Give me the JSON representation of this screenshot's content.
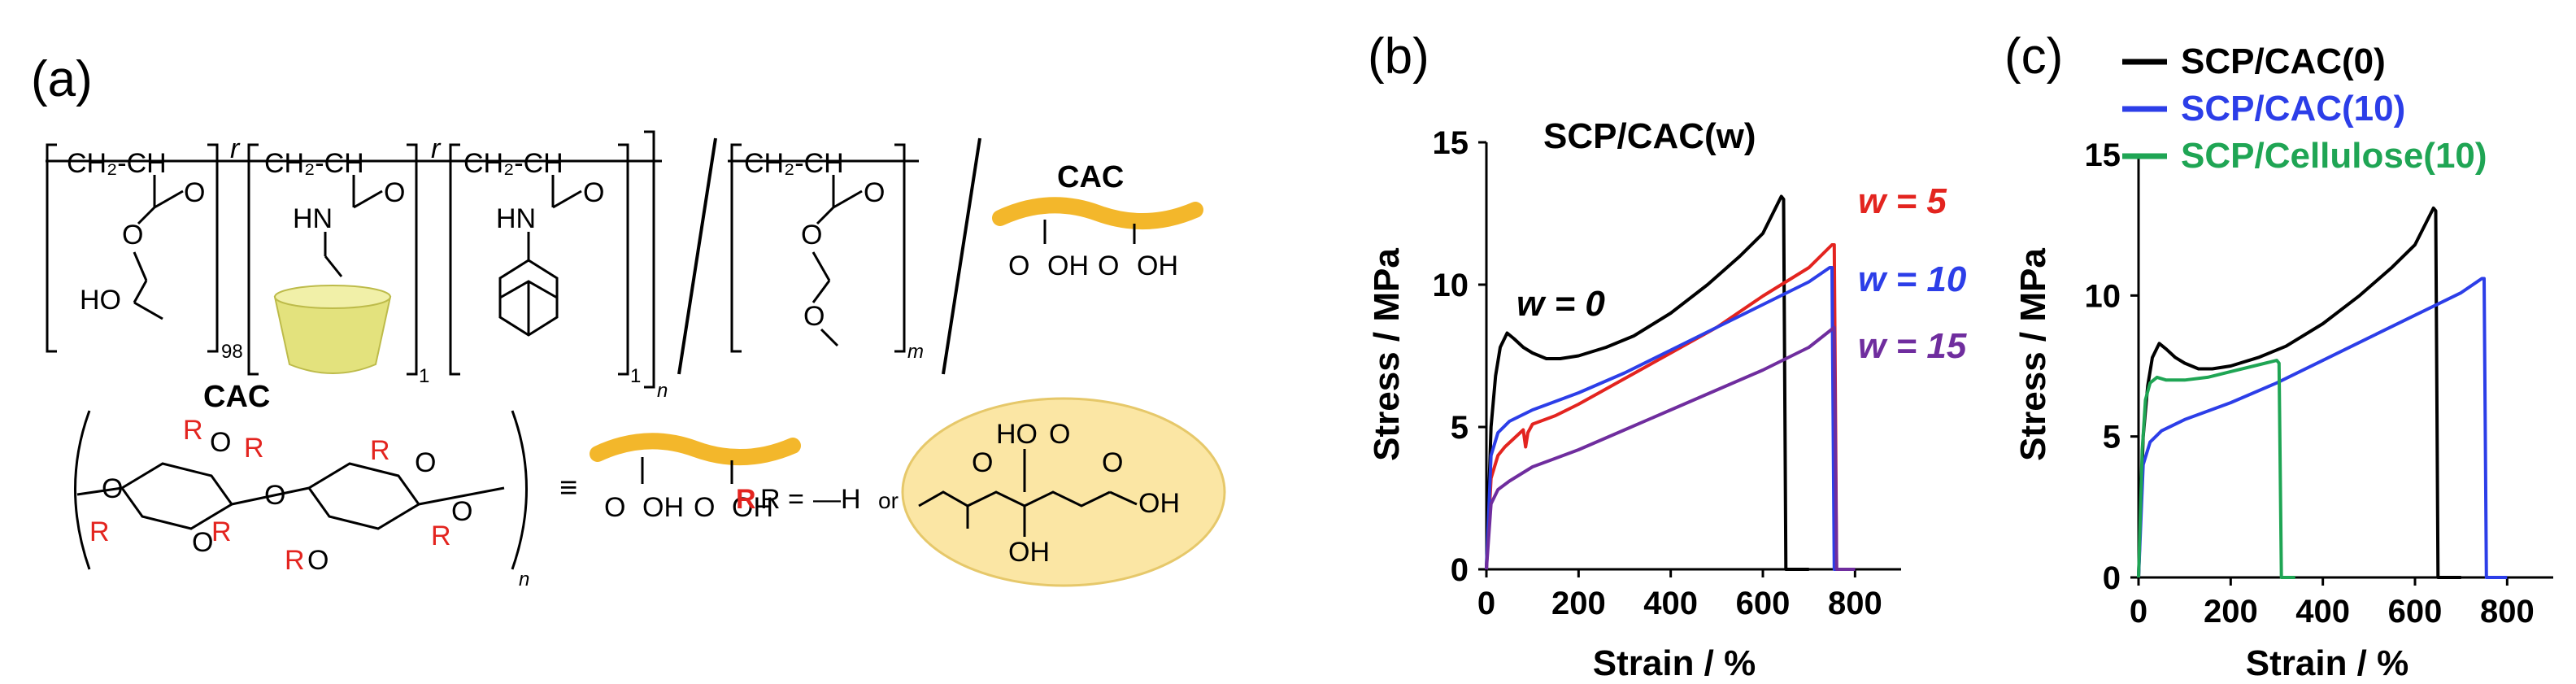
{
  "panels": {
    "a": "(a)",
    "b": "(b)",
    "c": "(c)"
  },
  "scheme": {
    "cac_label_top": "CAC",
    "cac_label_bottom": "CAC",
    "r_label": "R",
    "r_equals": "R =",
    "r_or": "or",
    "h_group": "—H",
    "equiv": "≡",
    "sub_98": "98",
    "sub_1a": "1",
    "sub_1b": "1",
    "sub_n": "n",
    "sub_m": "m",
    "sub_n2": "n",
    "random_r1": "r",
    "random_r2": "r",
    "ch2ch_1": "CH₂-CH",
    "ch2ch_2": "CH₂-CH",
    "ch2ch_3": "CH₂-CH",
    "ch2ch_4": "CH₂-CH",
    "ho": "HO",
    "hn_1": "HN",
    "hn_2": "HN",
    "oh_1": "OH",
    "oh_2": "OH",
    "oh_3": "OH",
    "oh_4": "OH",
    "oh_citric": "OH",
    "ho_citric": "HO",
    "oh_citric2": "OH",
    "o_letters": "O",
    "colors": {
      "cac_chain": "#f3b72b",
      "cyclodextrin": "#e3e27d",
      "citric_bg": "#fbe6a4",
      "red_r": "#e3241f"
    }
  },
  "chart_data": [
    {
      "type": "line",
      "title": "SCP/CAC(w)",
      "xlabel": "Strain / %",
      "ylabel": "Stress / MPa",
      "xlim": [
        0,
        900
      ],
      "ylim": [
        0,
        15
      ],
      "xticks": [
        0,
        200,
        400,
        600,
        800
      ],
      "yticks": [
        0,
        5,
        10,
        15
      ],
      "annotations": [
        {
          "text": "w = 0",
          "color": "#000000"
        },
        {
          "text": "w = 5",
          "color": "#e3241f"
        },
        {
          "text": "w = 10",
          "color": "#2c3ee8"
        },
        {
          "text": "w = 15",
          "color": "#6f2d9e"
        }
      ],
      "series": [
        {
          "color": "#000000",
          "x": [
            0,
            10,
            20,
            30,
            45,
            60,
            80,
            100,
            130,
            160,
            200,
            260,
            320,
            400,
            480,
            550,
            600,
            640,
            645,
            650,
            700
          ],
          "y": [
            0,
            5.0,
            6.8,
            7.8,
            8.3,
            8.1,
            7.8,
            7.6,
            7.4,
            7.4,
            7.5,
            7.8,
            8.2,
            9.0,
            10.0,
            11.0,
            11.8,
            13.1,
            13.0,
            0,
            0
          ]
        },
        {
          "color": "#e3241f",
          "x": [
            0,
            10,
            25,
            40,
            60,
            80,
            85,
            90,
            100,
            150,
            200,
            300,
            400,
            500,
            600,
            700,
            750,
            755,
            760,
            800
          ],
          "y": [
            0,
            3.2,
            4.0,
            4.3,
            4.6,
            4.9,
            4.3,
            4.8,
            5.1,
            5.4,
            5.8,
            6.7,
            7.6,
            8.5,
            9.6,
            10.6,
            11.4,
            11.4,
            0,
            0
          ]
        },
        {
          "color": "#2c3ee8",
          "x": [
            0,
            10,
            25,
            50,
            100,
            200,
            300,
            400,
            500,
            600,
            700,
            745,
            750,
            755,
            800
          ],
          "y": [
            0,
            4.0,
            4.8,
            5.2,
            5.6,
            6.2,
            6.9,
            7.7,
            8.5,
            9.3,
            10.1,
            10.6,
            10.6,
            0,
            0
          ]
        },
        {
          "color": "#6f2d9e",
          "x": [
            0,
            10,
            25,
            50,
            100,
            200,
            300,
            400,
            500,
            600,
            700,
            755,
            760,
            800
          ],
          "y": [
            0,
            2.3,
            2.8,
            3.1,
            3.6,
            4.2,
            4.9,
            5.6,
            6.3,
            7.0,
            7.8,
            8.5,
            0,
            0
          ]
        }
      ]
    },
    {
      "type": "line",
      "xlabel": "Strain / %",
      "ylabel": "Stress / MPa",
      "xlim": [
        0,
        900
      ],
      "ylim": [
        0,
        15
      ],
      "xticks": [
        0,
        200,
        400,
        600,
        800
      ],
      "yticks": [
        0,
        5,
        10,
        15
      ],
      "legend": "top-left",
      "series": [
        {
          "name": "SCP/CAC(0)",
          "color": "#000000",
          "x": [
            0,
            10,
            20,
            30,
            45,
            60,
            80,
            100,
            130,
            160,
            200,
            260,
            320,
            400,
            480,
            550,
            600,
            640,
            645,
            650,
            700
          ],
          "y": [
            0,
            5.0,
            6.8,
            7.8,
            8.3,
            8.1,
            7.8,
            7.6,
            7.4,
            7.4,
            7.5,
            7.8,
            8.2,
            9.0,
            10.0,
            11.0,
            11.8,
            13.1,
            13.0,
            0,
            0
          ]
        },
        {
          "name": "SCP/CAC(10)",
          "color": "#2c3ee8",
          "x": [
            0,
            10,
            25,
            50,
            100,
            200,
            300,
            400,
            500,
            600,
            700,
            745,
            750,
            755,
            800
          ],
          "y": [
            0,
            4.0,
            4.8,
            5.2,
            5.6,
            6.2,
            6.9,
            7.7,
            8.5,
            9.3,
            10.1,
            10.6,
            10.6,
            0,
            0
          ]
        },
        {
          "name": "SCP/Cellulose(10)",
          "color": "#1fa554",
          "x": [
            0,
            8,
            15,
            25,
            40,
            60,
            100,
            150,
            200,
            250,
            300,
            305,
            310,
            340
          ],
          "y": [
            0,
            4.5,
            6.3,
            6.9,
            7.1,
            7.0,
            7.0,
            7.1,
            7.3,
            7.5,
            7.7,
            7.6,
            0,
            0
          ]
        }
      ]
    }
  ]
}
